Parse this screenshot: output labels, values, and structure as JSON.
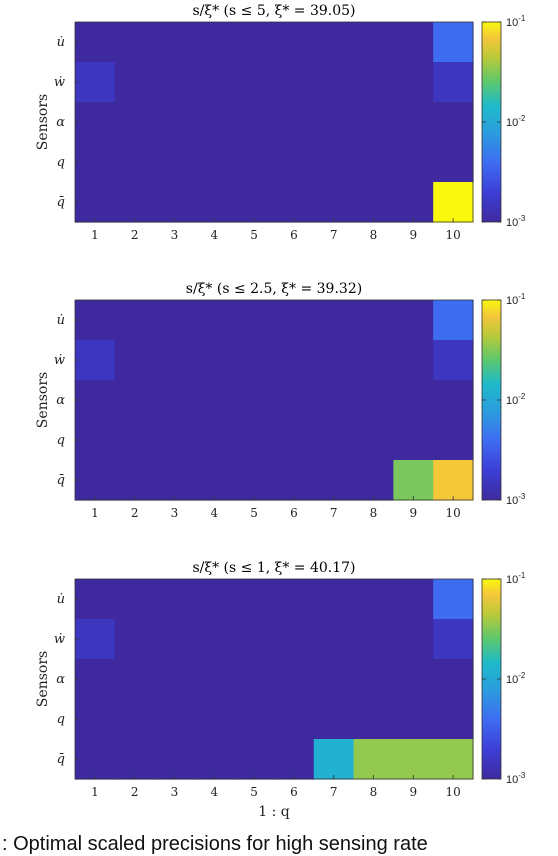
{
  "caption": ": Optimal scaled precisions for high sensing rate",
  "chart_data": [
    {
      "type": "heatmap",
      "title": "s/ξ*  (s ≤ 5, ξ* = 39.05)",
      "ylabel": "Sensors",
      "xlabel": "",
      "x_ticks": [
        "1",
        "2",
        "3",
        "4",
        "5",
        "6",
        "7",
        "8",
        "9",
        "10"
      ],
      "y_ticks": [
        "u̇",
        "ẇ",
        "α",
        "q",
        "q̄"
      ],
      "colorbar": {
        "scale": "log",
        "min": 0.001,
        "max": 0.1,
        "tick_labels": [
          "10-1",
          "10-2",
          "10-3"
        ]
      },
      "cells": [
        [
          0.001,
          0.001,
          0.001,
          0.001,
          0.001,
          0.001,
          0.001,
          0.001,
          0.001,
          0.004
        ],
        [
          0.0015,
          0.001,
          0.001,
          0.001,
          0.001,
          0.001,
          0.001,
          0.001,
          0.001,
          0.0015
        ],
        [
          0.001,
          0.001,
          0.001,
          0.001,
          0.001,
          0.001,
          0.001,
          0.001,
          0.001,
          0.001
        ],
        [
          0.001,
          0.001,
          0.001,
          0.001,
          0.001,
          0.001,
          0.001,
          0.001,
          0.001,
          0.001
        ],
        [
          0.001,
          0.001,
          0.001,
          0.001,
          0.001,
          0.001,
          0.001,
          0.001,
          0.001,
          0.1
        ]
      ]
    },
    {
      "type": "heatmap",
      "title": "s/ξ*  (s ≤ 2.5, ξ* = 39.32)",
      "ylabel": "Sensors",
      "xlabel": "",
      "x_ticks": [
        "1",
        "2",
        "3",
        "4",
        "5",
        "6",
        "7",
        "8",
        "9",
        "10"
      ],
      "y_ticks": [
        "u̇",
        "ẇ",
        "α",
        "q",
        "q̄"
      ],
      "colorbar": {
        "scale": "log",
        "min": 0.001,
        "max": 0.1,
        "tick_labels": [
          "10-1",
          "10-2",
          "10-3"
        ]
      },
      "cells": [
        [
          0.001,
          0.001,
          0.001,
          0.001,
          0.001,
          0.001,
          0.001,
          0.001,
          0.001,
          0.004
        ],
        [
          0.0015,
          0.001,
          0.001,
          0.001,
          0.001,
          0.001,
          0.001,
          0.001,
          0.001,
          0.0015
        ],
        [
          0.001,
          0.001,
          0.001,
          0.001,
          0.001,
          0.001,
          0.001,
          0.001,
          0.001,
          0.001
        ],
        [
          0.001,
          0.001,
          0.001,
          0.001,
          0.001,
          0.001,
          0.001,
          0.001,
          0.001,
          0.001
        ],
        [
          0.001,
          0.001,
          0.001,
          0.001,
          0.001,
          0.001,
          0.001,
          0.001,
          0.03,
          0.07
        ]
      ]
    },
    {
      "type": "heatmap",
      "title": "s/ξ*  (s ≤ 1, ξ* = 40.17)",
      "ylabel": "Sensors",
      "xlabel": "1 : q",
      "x_ticks": [
        "1",
        "2",
        "3",
        "4",
        "5",
        "6",
        "7",
        "8",
        "9",
        "10"
      ],
      "y_ticks": [
        "u̇",
        "ẇ",
        "α",
        "q",
        "q̄"
      ],
      "colorbar": {
        "scale": "log",
        "min": 0.001,
        "max": 0.1,
        "tick_labels": [
          "10-1",
          "10-2",
          "10-3"
        ]
      },
      "cells": [
        [
          0.001,
          0.001,
          0.001,
          0.001,
          0.001,
          0.001,
          0.001,
          0.001,
          0.001,
          0.004
        ],
        [
          0.0015,
          0.001,
          0.001,
          0.001,
          0.001,
          0.001,
          0.001,
          0.001,
          0.001,
          0.0015
        ],
        [
          0.001,
          0.001,
          0.001,
          0.001,
          0.001,
          0.001,
          0.001,
          0.001,
          0.001,
          0.001
        ],
        [
          0.001,
          0.001,
          0.001,
          0.001,
          0.001,
          0.001,
          0.001,
          0.001,
          0.001,
          0.001
        ],
        [
          0.001,
          0.001,
          0.001,
          0.001,
          0.001,
          0.001,
          0.012,
          0.035,
          0.035,
          0.035
        ]
      ]
    }
  ]
}
